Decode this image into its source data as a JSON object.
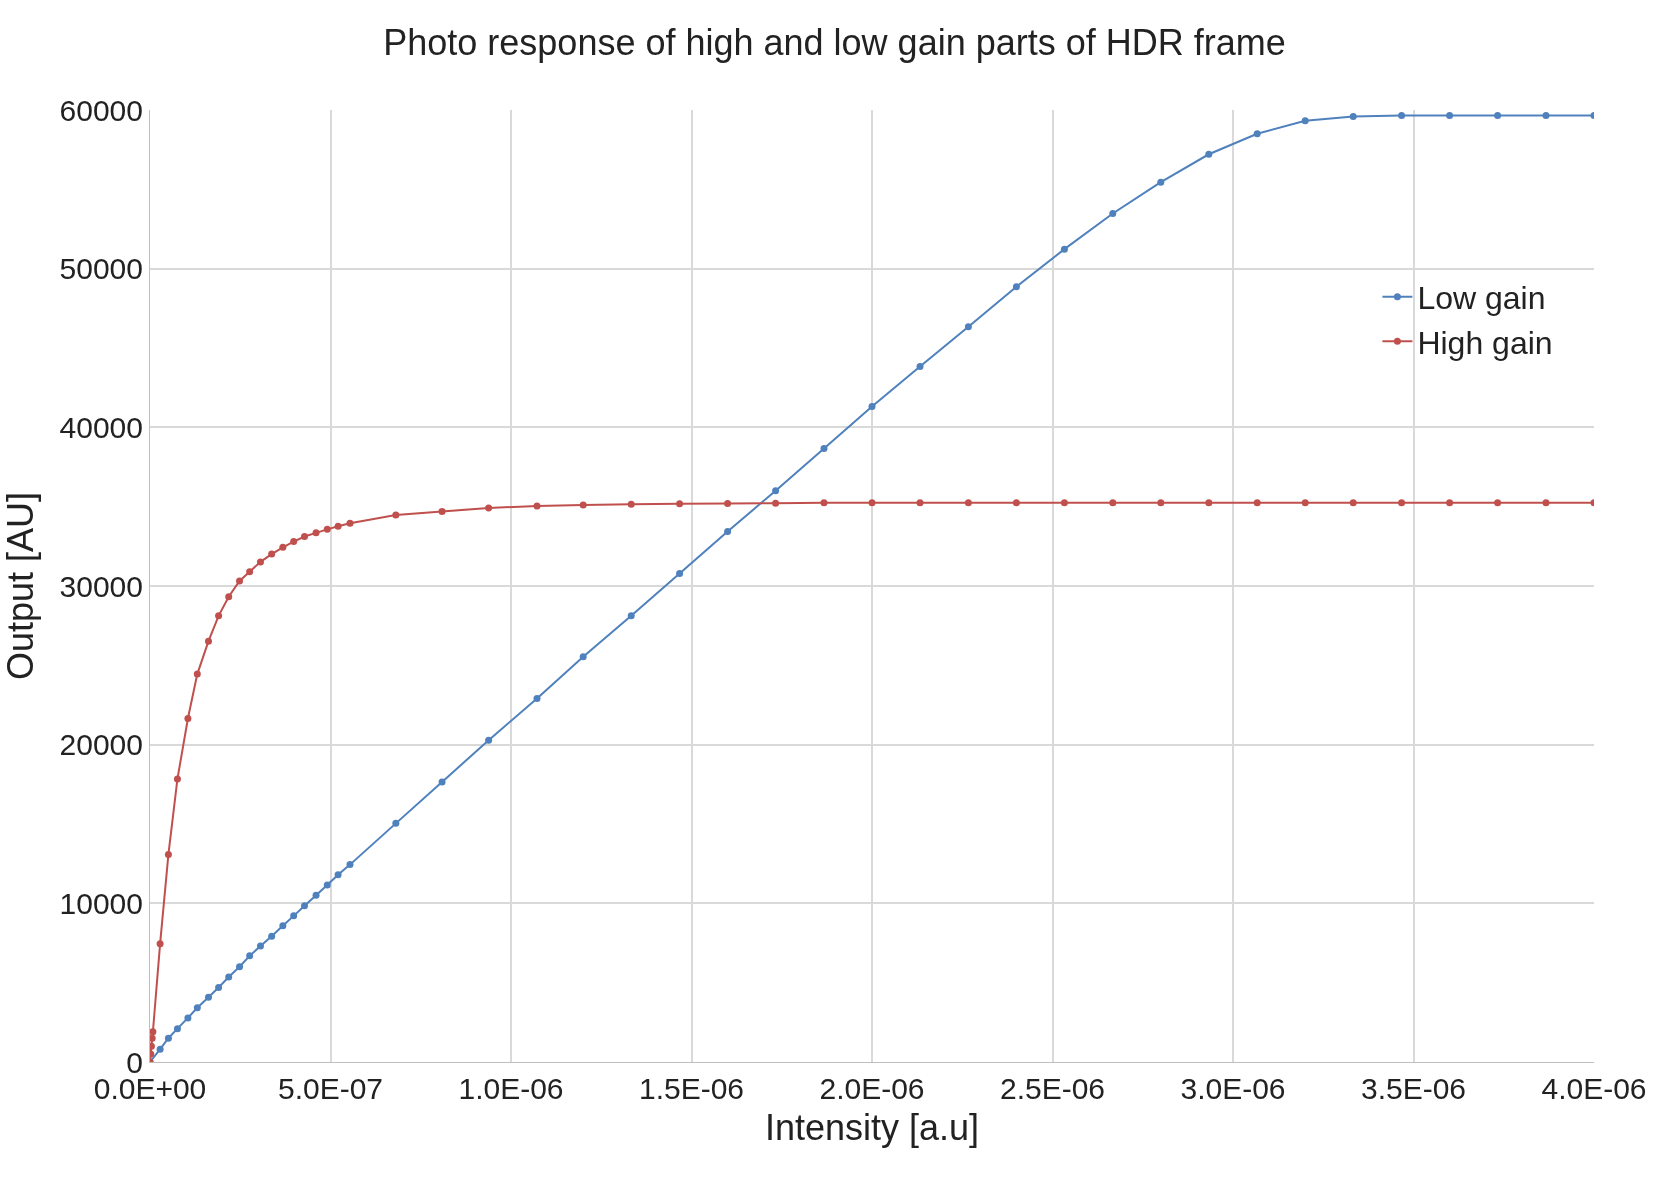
{
  "chart_data": {
    "type": "line",
    "title": "Photo response of high and low gain parts of HDR frame",
    "xlabel": "Intensity [a.u]",
    "ylabel": "Output [AU]",
    "xlim": [
      0,
      4e-06
    ],
    "xticks": [
      {
        "value": 0,
        "label": "0.0E+00"
      },
      {
        "value": 5e-07,
        "label": "5.0E-07"
      },
      {
        "value": 1e-06,
        "label": "1.0E-06"
      },
      {
        "value": 1.5e-06,
        "label": "1.5E-06"
      },
      {
        "value": 2e-06,
        "label": "2.0E-06"
      },
      {
        "value": 2.5e-06,
        "label": "2.5E-06"
      },
      {
        "value": 3e-06,
        "label": "3.0E-06"
      },
      {
        "value": 3.5e-06,
        "label": "3.5E-06"
      },
      {
        "value": 4e-06,
        "label": "4.0E-06"
      }
    ],
    "ylim": [
      0,
      60000
    ],
    "yticks": [
      0,
      10000,
      20000,
      30000,
      40000,
      50000,
      60000
    ],
    "grid": true,
    "legend": "right",
    "marker": "circle",
    "line_style": "solid",
    "series": [
      {
        "name": "Low gain",
        "color": "#4f81bd",
        "x": [
          0,
          2.8e-08,
          5.1e-08,
          7.6e-08,
          1.05e-07,
          1.31e-07,
          1.62e-07,
          1.9e-07,
          2.18e-07,
          2.48e-07,
          2.76e-07,
          3.06e-07,
          3.37e-07,
          3.68e-07,
          3.98e-07,
          4.28e-07,
          4.6e-07,
          4.91e-07,
          5.21e-07,
          5.54e-07,
          6.81e-07,
          8.09e-07,
          9.38e-07,
          1.072e-06,
          1.2e-06,
          1.333e-06,
          1.467e-06,
          1.6e-06,
          1.733e-06,
          1.867e-06,
          2e-06,
          2.133e-06,
          2.267e-06,
          2.4e-06,
          2.533e-06,
          2.667e-06,
          2.8e-06,
          2.933e-06,
          3.067e-06,
          3.2e-06,
          3.333e-06,
          3.467e-06,
          3.6e-06,
          3.733e-06,
          3.867e-06,
          4e-06
        ],
        "values": [
          0,
          810,
          1500,
          2100,
          2780,
          3420,
          4080,
          4700,
          5360,
          6000,
          6690,
          7310,
          7930,
          8590,
          9210,
          9850,
          10510,
          11150,
          11800,
          12440,
          15040,
          17650,
          20280,
          22910,
          25540,
          28130,
          30780,
          33430,
          36010,
          38660,
          41310,
          43830,
          46340,
          48860,
          51230,
          53480,
          55450,
          57210,
          58500,
          59320,
          59590,
          59660,
          59660,
          59660,
          59660,
          59660
        ]
      },
      {
        "name": "High gain",
        "color": "#c0504d",
        "x": [
          0,
          2e-09,
          4e-09,
          6e-09,
          8e-09,
          2.8e-08,
          5.1e-08,
          7.6e-08,
          1.05e-07,
          1.31e-07,
          1.62e-07,
          1.9e-07,
          2.18e-07,
          2.48e-07,
          2.76e-07,
          3.06e-07,
          3.37e-07,
          3.68e-07,
          3.98e-07,
          4.28e-07,
          4.6e-07,
          4.91e-07,
          5.21e-07,
          5.54e-07,
          6.81e-07,
          8.09e-07,
          9.38e-07,
          1.072e-06,
          1.2e-06,
          1.333e-06,
          1.467e-06,
          1.6e-06,
          1.733e-06,
          1.867e-06,
          2e-06,
          2.133e-06,
          2.267e-06,
          2.4e-06,
          2.533e-06,
          2.667e-06,
          2.8e-06,
          2.933e-06,
          3.067e-06,
          3.2e-06,
          3.333e-06,
          3.467e-06,
          3.6e-06,
          3.733e-06,
          3.867e-06,
          4e-06
        ],
        "values": [
          0,
          500,
          1000,
          1500,
          1900,
          7460,
          13080,
          17840,
          21650,
          24450,
          26520,
          28120,
          29320,
          30320,
          30900,
          31520,
          32010,
          32440,
          32800,
          33120,
          33350,
          33570,
          33760,
          33950,
          34470,
          34700,
          34920,
          35040,
          35100,
          35150,
          35180,
          35200,
          35220,
          35240,
          35240,
          35240,
          35240,
          35240,
          35240,
          35240,
          35240,
          35240,
          35240,
          35240,
          35240,
          35240,
          35240,
          35240,
          35240,
          35240
        ]
      }
    ]
  }
}
